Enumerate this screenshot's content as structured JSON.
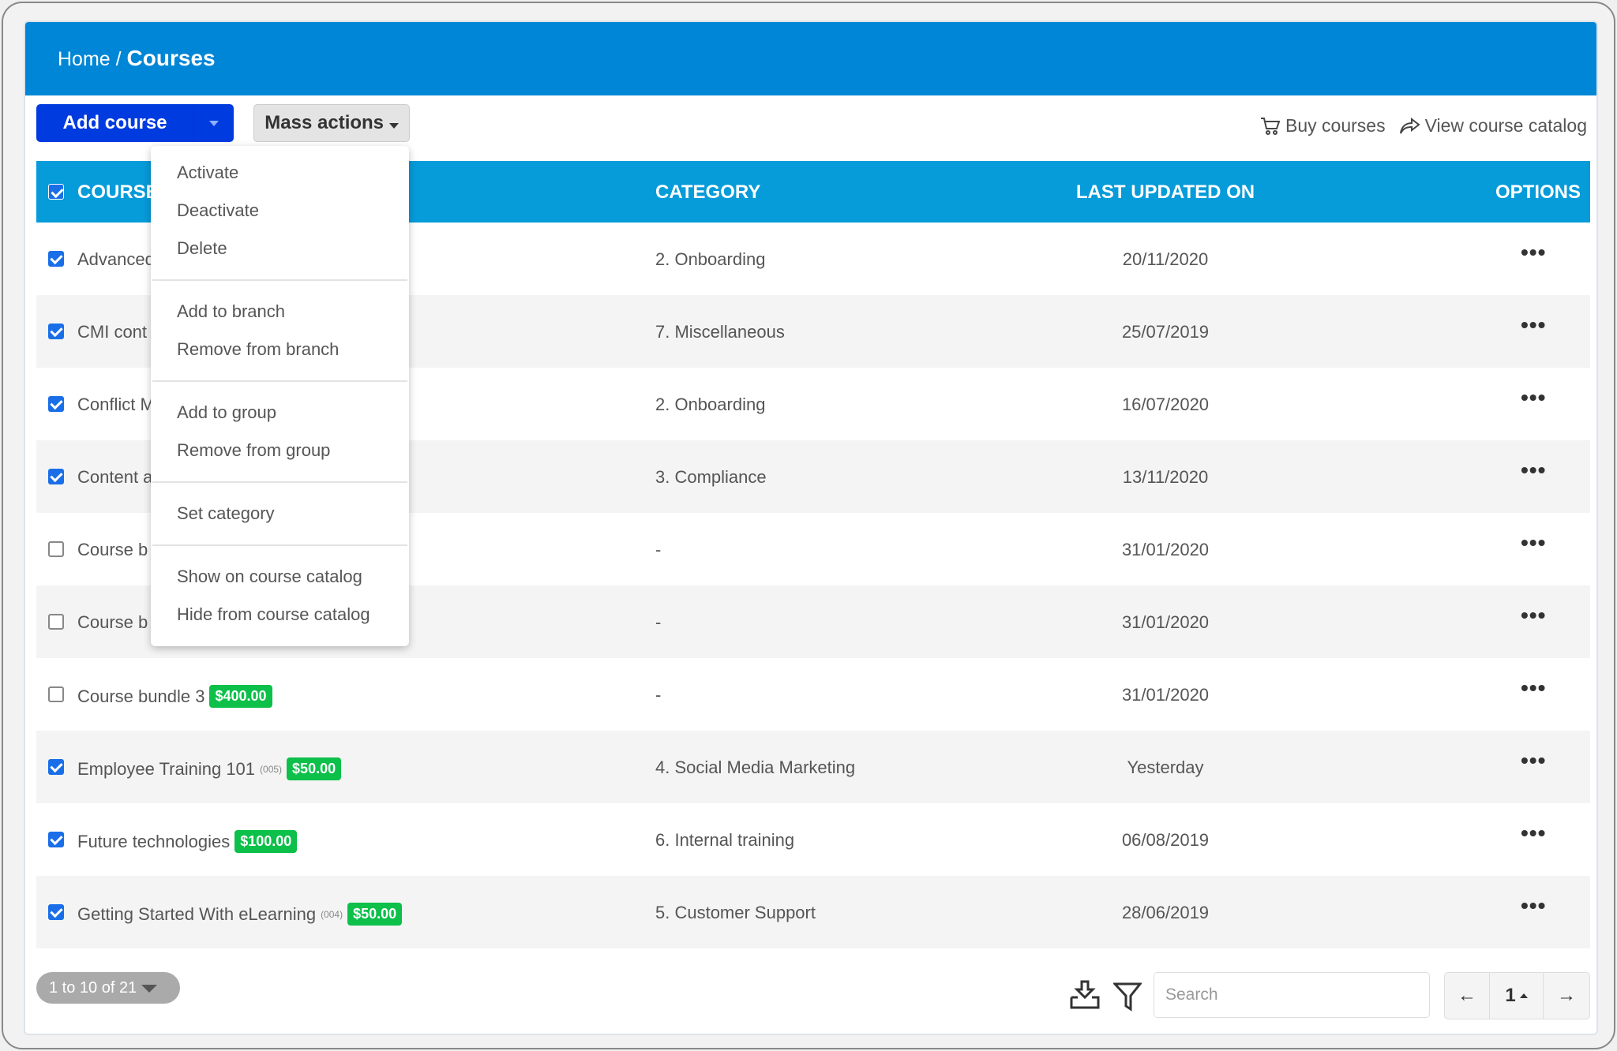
{
  "breadcrumb": {
    "home": "Home",
    "separator": "/",
    "current": "Courses"
  },
  "toolbar": {
    "add_course": "Add course",
    "mass_actions": "Mass actions",
    "buy_courses": "Buy courses",
    "view_catalog": "View course catalog"
  },
  "table": {
    "headers": {
      "course": "COURSE",
      "category": "CATEGORY",
      "last_updated": "LAST UPDATED ON",
      "options": "OPTIONS"
    },
    "rows": [
      {
        "name": "Advanced",
        "code": "",
        "price": "",
        "category": "2. Onboarding",
        "updated": "20/11/2020",
        "checked": true
      },
      {
        "name": "CMI cont",
        "code": "",
        "price": "",
        "category": "7. Miscellaneous",
        "updated": "25/07/2019",
        "checked": true
      },
      {
        "name": "Conflict M",
        "code": "",
        "price": "",
        "category": "2. Onboarding",
        "updated": "16/07/2020",
        "checked": true
      },
      {
        "name": "Content a",
        "code": "",
        "price": "",
        "category": "3. Compliance",
        "updated": "13/11/2020",
        "checked": true
      },
      {
        "name": "Course b",
        "code": "",
        "price": "",
        "category": "-",
        "updated": "31/01/2020",
        "checked": false
      },
      {
        "name": "Course b",
        "code": "",
        "price": "",
        "category": "-",
        "updated": "31/01/2020",
        "checked": false
      },
      {
        "name": "Course bundle 3",
        "code": "",
        "price": "$400.00",
        "category": "-",
        "updated": "31/01/2020",
        "checked": false
      },
      {
        "name": "Employee Training 101",
        "code": "(005)",
        "price": "$50.00",
        "category": "4. Social Media Marketing",
        "updated": "Yesterday",
        "checked": true
      },
      {
        "name": "Future technologies",
        "code": "",
        "price": "$100.00",
        "category": "6. Internal training",
        "updated": "06/08/2019",
        "checked": true
      },
      {
        "name": "Getting Started With eLearning",
        "code": "(004)",
        "price": "$50.00",
        "category": "5. Customer Support",
        "updated": "28/06/2019",
        "checked": true
      }
    ],
    "options_glyph": "•••"
  },
  "mass_menu": {
    "groups": [
      [
        "Activate",
        "Deactivate",
        "Delete"
      ],
      [
        "Add to branch",
        "Remove from branch"
      ],
      [
        "Add to group",
        "Remove from group"
      ],
      [
        "Set category"
      ],
      [
        "Show on course catalog",
        "Hide from course catalog"
      ]
    ]
  },
  "footer": {
    "range": "1 to 10 of 21",
    "search_placeholder": "Search",
    "page": "1",
    "prev": "←",
    "next": "→"
  },
  "colors": {
    "header": "#0086d6",
    "table_header": "#069bd9",
    "add_button": "#003be0",
    "badge": "#0cc04a",
    "checkbox": "#1a6fe8"
  }
}
